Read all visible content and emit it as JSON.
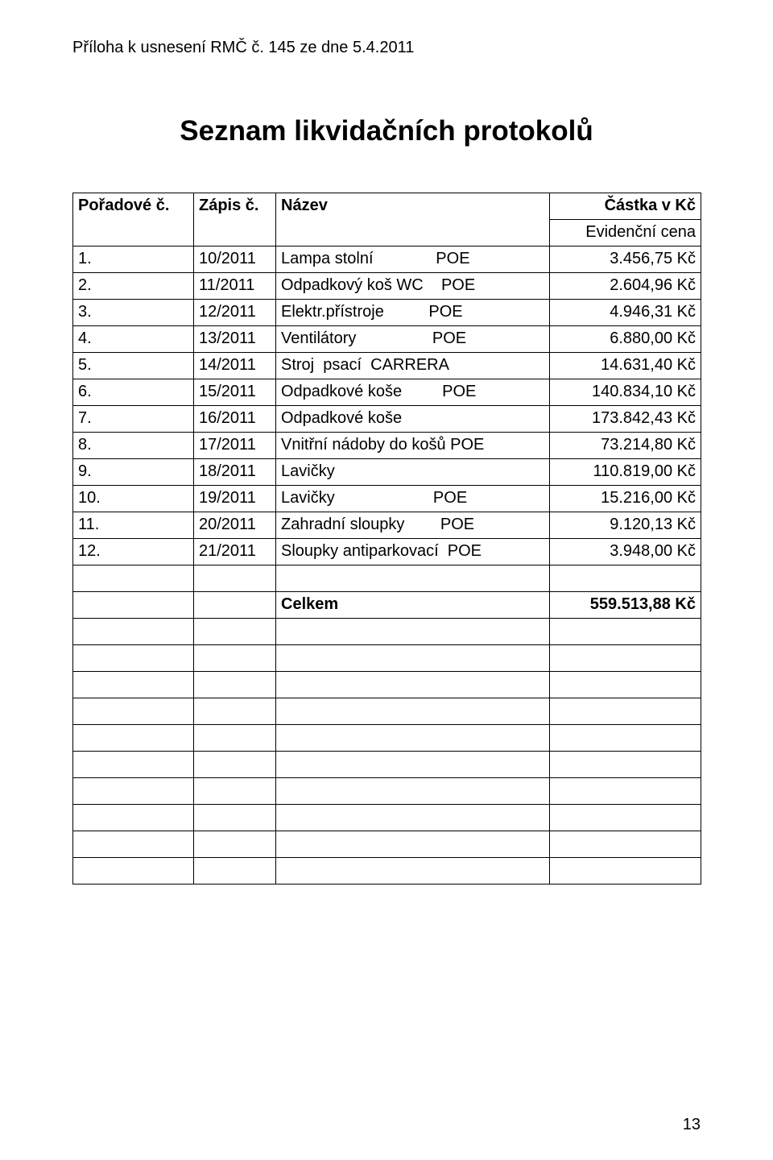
{
  "attachment_line": "Příloha k usnesení RMČ č. 145 ze dne 5.4.2011",
  "title": "Seznam likvidačních protokolů",
  "header": {
    "col1": "Pořadové č.",
    "col2": "Zápis č.",
    "col3": "Název",
    "col4_top": "Částka v Kč",
    "col4_sub": "Evidenční cena"
  },
  "rows": [
    {
      "n": "1.",
      "zapis": "10/2011",
      "nazev": "Lampa stolní              POE",
      "castka": "3.456,75 Kč"
    },
    {
      "n": "2.",
      "zapis": "11/2011",
      "nazev": "Odpadkový koš WC    POE",
      "castka": "2.604,96 Kč"
    },
    {
      "n": "3.",
      "zapis": "12/2011",
      "nazev": "Elektr.přístroje          POE",
      "castka": "4.946,31 Kč"
    },
    {
      "n": "4.",
      "zapis": "13/2011",
      "nazev": "Ventilátory                 POE",
      "castka": "6.880,00 Kč"
    },
    {
      "n": "5.",
      "zapis": "14/2011",
      "nazev": "Stroj  psací  CARRERA",
      "castka": "14.631,40 Kč"
    },
    {
      "n": "6.",
      "zapis": "15/2011",
      "nazev": "Odpadkové koše         POE",
      "castka": "140.834,10 Kč"
    },
    {
      "n": "7.",
      "zapis": "16/2011",
      "nazev": "Odpadkové koše",
      "castka": "173.842,43 Kč"
    },
    {
      "n": "8.",
      "zapis": "17/2011",
      "nazev": "Vnitřní nádoby do košů POE",
      "castka": "73.214,80 Kč"
    },
    {
      "n": "9.",
      "zapis": "18/2011",
      "nazev": "Lavičky",
      "castka": "110.819,00 Kč"
    },
    {
      "n": "10.",
      "zapis": "19/2011",
      "nazev": "Lavičky                      POE",
      "castka": "15.216,00 Kč"
    },
    {
      "n": "11.",
      "zapis": "20/2011",
      "nazev": "Zahradní sloupky        POE",
      "castka": "9.120,13 Kč"
    },
    {
      "n": "12.",
      "zapis": "21/2011",
      "nazev": "Sloupky antiparkovací  POE",
      "castka": "3.948,00 Kč"
    }
  ],
  "total_label": "Celkem",
  "total_value": "559.513,88 Kč",
  "blank_rows_after_data": 1,
  "blank_rows_after_total": 10,
  "page_number": "13"
}
